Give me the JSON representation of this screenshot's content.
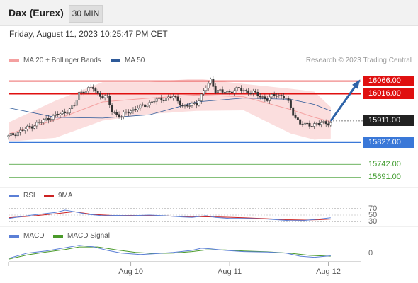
{
  "header": {
    "instrument": "Dax (Eurex)",
    "timeframe": "30 MIN"
  },
  "datetime": "Friday, August 11, 2023 10:25:47 PM CET",
  "credit": "Research © 2023 Trading Central",
  "colors": {
    "resistance": "#e01010",
    "support": "#3a78d8",
    "target": "#3c9a2a",
    "bands": "#f4a0a0",
    "ma50": "#2e5a99",
    "arrow": "#2e63a8",
    "rsi": "#5b7fd6",
    "rsi_ma": "#cc2222",
    "macd": "#5b7fd6",
    "macd_signal": "#4a9a2a"
  },
  "chart_data": [
    {
      "type": "candlestick",
      "legend": [
        {
          "name": "MA 20 + Bollinger Bands",
          "color": "#f4a0a0"
        },
        {
          "name": "MA 50",
          "color": "#2e5a99"
        }
      ],
      "ylim": [
        15660,
        16120
      ],
      "x_ticks": [
        {
          "label": "Aug 10",
          "index": 52
        },
        {
          "label": "Aug 11",
          "index": 94
        },
        {
          "label": "Aug 12",
          "index": 136
        }
      ],
      "levels": [
        {
          "value": 16066.0,
          "label": "16066.00",
          "kind": "resistance"
        },
        {
          "value": 16016.0,
          "label": "16016.00",
          "kind": "resistance"
        },
        {
          "value": 15911.0,
          "label": "15911.00",
          "kind": "last"
        },
        {
          "value": 15827.0,
          "label": "15827.00",
          "kind": "support"
        },
        {
          "value": 15742.0,
          "label": "15742.00",
          "kind": "target"
        },
        {
          "value": 15691.0,
          "label": "15691.00",
          "kind": "target"
        }
      ],
      "close_path": [
        [
          0,
          15850
        ],
        [
          6,
          15875
        ],
        [
          12,
          15900
        ],
        [
          18,
          15925
        ],
        [
          24,
          15945
        ],
        [
          28,
          15970
        ],
        [
          30,
          16020
        ],
        [
          36,
          16040
        ],
        [
          38,
          16015
        ],
        [
          42,
          16000
        ],
        [
          44,
          15950
        ],
        [
          48,
          15925
        ],
        [
          50,
          15945
        ],
        [
          56,
          15965
        ],
        [
          62,
          15990
        ],
        [
          70,
          16005
        ],
        [
          75,
          15965
        ],
        [
          80,
          15980
        ],
        [
          84,
          16040
        ],
        [
          86,
          16070
        ],
        [
          88,
          16030
        ],
        [
          92,
          16020
        ],
        [
          98,
          16035
        ],
        [
          104,
          16020
        ],
        [
          110,
          15995
        ],
        [
          114,
          16015
        ],
        [
          118,
          16000
        ],
        [
          121,
          15940
        ],
        [
          124,
          15900
        ],
        [
          126,
          15895
        ],
        [
          132,
          15900
        ],
        [
          137,
          15905
        ]
      ],
      "bands_upper": [
        [
          0,
          15905
        ],
        [
          20,
          15990
        ],
        [
          40,
          16062
        ],
        [
          60,
          16062
        ],
        [
          80,
          16076
        ],
        [
          100,
          16055
        ],
        [
          120,
          16036
        ],
        [
          130,
          16025
        ],
        [
          137,
          15965
        ]
      ],
      "bands_lower": [
        [
          0,
          15830
        ],
        [
          20,
          15845
        ],
        [
          40,
          15912
        ],
        [
          60,
          15938
        ],
        [
          80,
          15950
        ],
        [
          100,
          15952
        ],
        [
          120,
          15862
        ],
        [
          130,
          15838
        ],
        [
          137,
          15842
        ]
      ],
      "ma20": [
        [
          0,
          15860
        ],
        [
          20,
          15915
        ],
        [
          40,
          15985
        ],
        [
          60,
          16000
        ],
        [
          80,
          16012
        ],
        [
          100,
          16005
        ],
        [
          120,
          15955
        ],
        [
          130,
          15925
        ],
        [
          137,
          15908
        ]
      ],
      "ma50": [
        [
          0,
          15962
        ],
        [
          20,
          15925
        ],
        [
          40,
          15922
        ],
        [
          60,
          15935
        ],
        [
          80,
          15985
        ],
        [
          100,
          16000
        ],
        [
          120,
          15995
        ],
        [
          130,
          15975
        ],
        [
          137,
          15950
        ]
      ],
      "projection": {
        "from": [
          137,
          15911
        ],
        "to": [
          149,
          16066
        ]
      }
    },
    {
      "type": "line",
      "legend": [
        {
          "name": "RSI",
          "color": "#5b7fd6"
        },
        {
          "name": "9MA",
          "color": "#cc2222"
        }
      ],
      "ylim": [
        20,
        80
      ],
      "levels": [
        {
          "value": 70,
          "label": "70"
        },
        {
          "value": 50,
          "label": "50"
        },
        {
          "value": 30,
          "label": "30"
        }
      ],
      "rsi": [
        [
          0,
          40
        ],
        [
          10,
          50
        ],
        [
          20,
          58
        ],
        [
          24,
          65
        ],
        [
          28,
          60
        ],
        [
          34,
          52
        ],
        [
          40,
          48
        ],
        [
          46,
          49
        ],
        [
          52,
          48
        ],
        [
          60,
          50
        ],
        [
          66,
          48
        ],
        [
          72,
          45
        ],
        [
          78,
          43
        ],
        [
          84,
          48
        ],
        [
          88,
          43
        ],
        [
          94,
          40
        ],
        [
          102,
          40
        ],
        [
          110,
          38
        ],
        [
          116,
          35
        ],
        [
          120,
          33
        ],
        [
          126,
          34
        ],
        [
          132,
          38
        ],
        [
          137,
          42
        ]
      ],
      "rsi_ma": [
        [
          0,
          42
        ],
        [
          10,
          47
        ],
        [
          20,
          54
        ],
        [
          28,
          60
        ],
        [
          36,
          52
        ],
        [
          44,
          49
        ],
        [
          54,
          49
        ],
        [
          64,
          48
        ],
        [
          72,
          46
        ],
        [
          80,
          45
        ],
        [
          90,
          44
        ],
        [
          100,
          42
        ],
        [
          110,
          39
        ],
        [
          118,
          36
        ],
        [
          126,
          35
        ],
        [
          132,
          36
        ],
        [
          137,
          38
        ]
      ]
    },
    {
      "type": "line",
      "legend": [
        {
          "name": "MACD",
          "color": "#5b7fd6"
        },
        {
          "name": "MACD Signal",
          "color": "#4a9a2a"
        }
      ],
      "ylim": [
        -30,
        65
      ],
      "levels": [
        {
          "value": 0,
          "label": "0"
        }
      ],
      "macd": [
        [
          0,
          -20
        ],
        [
          8,
          5
        ],
        [
          16,
          15
        ],
        [
          24,
          30
        ],
        [
          30,
          42
        ],
        [
          36,
          35
        ],
        [
          42,
          18
        ],
        [
          48,
          5
        ],
        [
          56,
          -2
        ],
        [
          62,
          2
        ],
        [
          70,
          8
        ],
        [
          78,
          18
        ],
        [
          82,
          28
        ],
        [
          86,
          25
        ],
        [
          92,
          18
        ],
        [
          100,
          12
        ],
        [
          110,
          10
        ],
        [
          118,
          5
        ],
        [
          124,
          -10
        ],
        [
          130,
          -15
        ],
        [
          137,
          -8
        ]
      ],
      "macd_signal": [
        [
          0,
          -24
        ],
        [
          8,
          -4
        ],
        [
          16,
          10
        ],
        [
          24,
          22
        ],
        [
          30,
          34
        ],
        [
          38,
          34
        ],
        [
          46,
          20
        ],
        [
          54,
          8
        ],
        [
          62,
          3
        ],
        [
          70,
          5
        ],
        [
          78,
          12
        ],
        [
          84,
          20
        ],
        [
          92,
          20
        ],
        [
          100,
          15
        ],
        [
          110,
          11
        ],
        [
          120,
          4
        ],
        [
          128,
          -6
        ],
        [
          137,
          -10
        ]
      ]
    }
  ]
}
